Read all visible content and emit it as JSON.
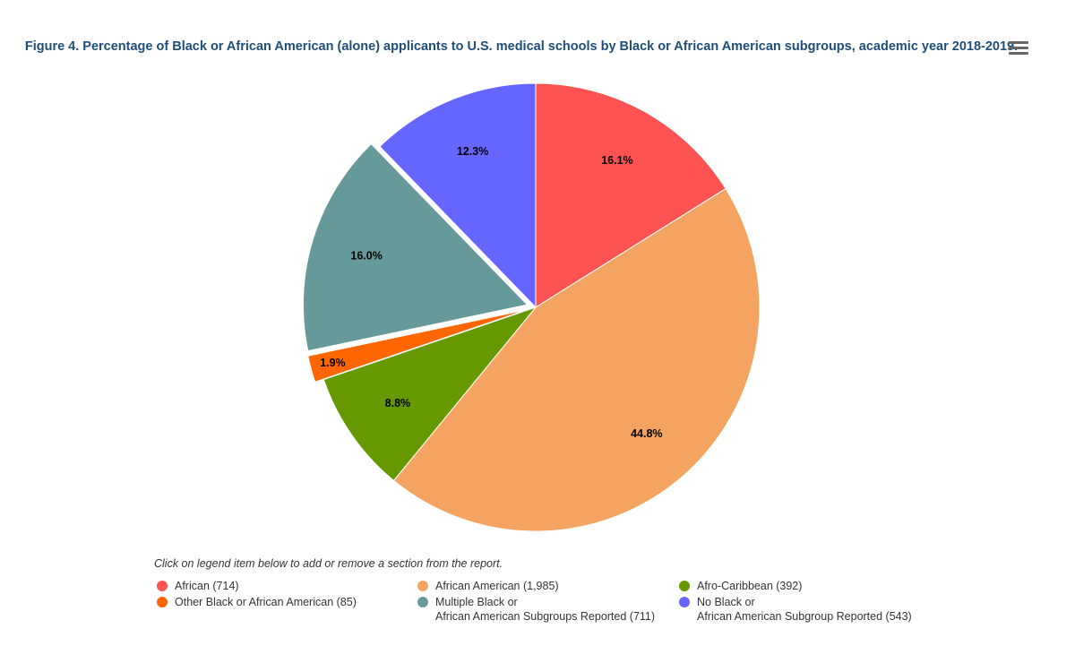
{
  "title": "Figure 4. Percentage of Black or African American (alone) applicants to U.S. medical schools by Black or African American subgroups, academic year 2018-2019.",
  "menu_icon": "hamburger-menu-icon",
  "legend_note": "Click on legend item below to add or remove a section from the report.",
  "chart_data": {
    "type": "pie",
    "legend_placement": "bottom",
    "slices": [
      {
        "name": "African",
        "count": 714,
        "value": 16.1,
        "label": "16.1%",
        "color": "#ff5252",
        "legend": "African (714)",
        "exploded": false
      },
      {
        "name": "African American",
        "count": 1985,
        "value": 44.8,
        "label": "44.8%",
        "color": "#f4a460",
        "legend": "African American (1,985)",
        "exploded": false
      },
      {
        "name": "Afro-Caribbean",
        "count": 392,
        "value": 8.8,
        "label": "8.8%",
        "color": "#669900",
        "legend": "Afro-Caribbean (392)",
        "exploded": false
      },
      {
        "name": "Other Black or African American",
        "count": 85,
        "value": 1.9,
        "label": "1.9%",
        "color": "#ff6600",
        "legend": "Other Black or African American (85)",
        "exploded": true
      },
      {
        "name": "Multiple Black or African American Subgroups Reported",
        "count": 711,
        "value": 16.0,
        "label": "16.0%",
        "color": "#669999",
        "legend": "Multiple Black or\nAfrican American Subgroups Reported (711)",
        "exploded": true
      },
      {
        "name": "No Black or African American Subgroup Reported",
        "count": 543,
        "value": 12.3,
        "label": "12.3%",
        "color": "#6666ff",
        "legend": "No Black or\nAfrican American Subgroup Reported (543)",
        "exploded": false
      }
    ]
  }
}
